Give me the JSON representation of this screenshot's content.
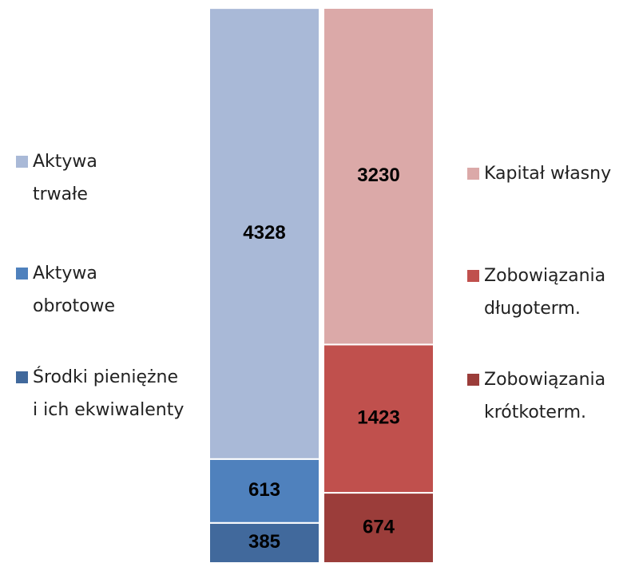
{
  "chart_data": {
    "type": "stacked_bar",
    "series": [
      {
        "name": "Środki pieniężne i ich ekwiwalenty",
        "color": "#41699c",
        "values": [
          385,
          null
        ]
      },
      {
        "name": "Aktywa obrotowe",
        "color": "#4f81bd",
        "values": [
          613,
          null
        ]
      },
      {
        "name": "Aktywa trwałe",
        "color": "#a9b9d7",
        "values": [
          4328,
          null
        ]
      },
      {
        "name": "Zobowiązania krótkoterm.",
        "color": "#9b3d3a",
        "values": [
          null,
          674
        ]
      },
      {
        "name": "Zobowiązania długoterm.",
        "color": "#c0504d",
        "values": [
          null,
          1423
        ]
      },
      {
        "name": "Kapitał własny",
        "color": "#dba9a8",
        "values": [
          null,
          3230
        ]
      }
    ]
  }
}
